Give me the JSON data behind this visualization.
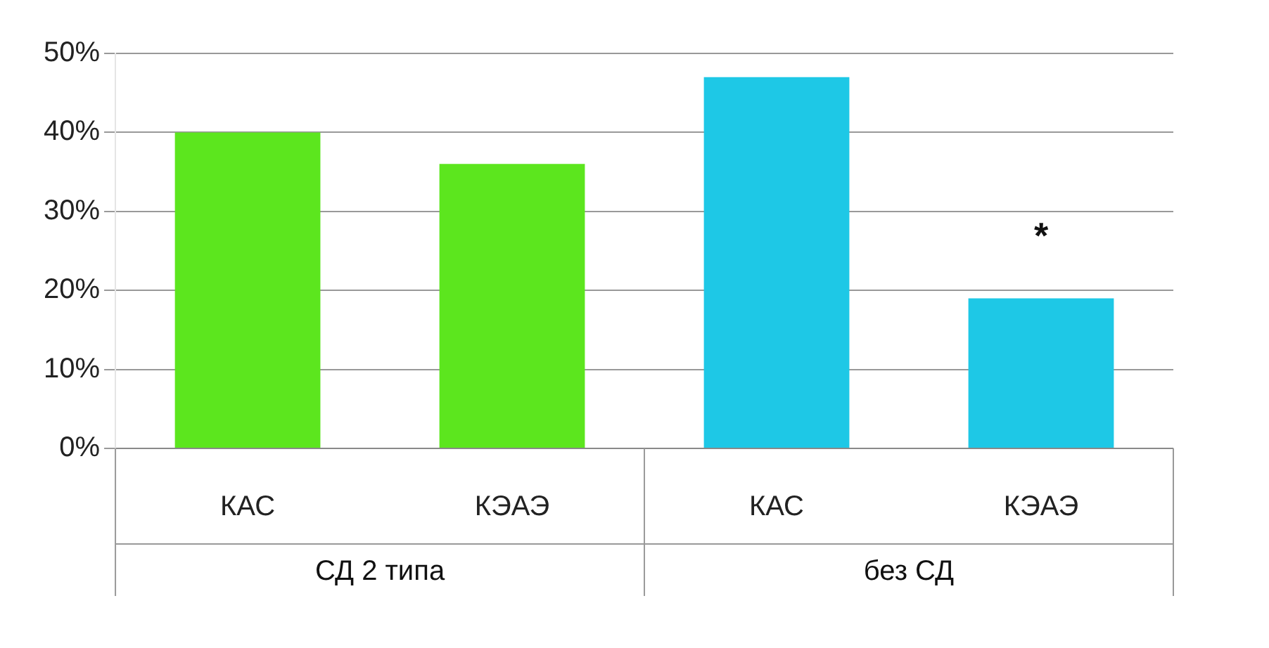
{
  "chart_data": {
    "type": "bar",
    "categories": [
      "КАС",
      "КЭАЭ",
      "КАС",
      "КЭАЭ"
    ],
    "values": [
      40,
      36,
      47,
      19
    ],
    "colors": [
      "#5ce61e",
      "#5ce61e",
      "#1ec8e6",
      "#1ec8e6"
    ],
    "ylim": [
      0,
      50
    ],
    "yticks": [
      {
        "value": 0,
        "label": "0%"
      },
      {
        "value": 10,
        "label": "10%"
      },
      {
        "value": 20,
        "label": "20%"
      },
      {
        "value": 30,
        "label": "30%"
      },
      {
        "value": 40,
        "label": "40%"
      },
      {
        "value": 50,
        "label": "50%"
      }
    ],
    "grid": "y",
    "legend": false,
    "value_labels": [
      null,
      null,
      null,
      "*"
    ],
    "annotations": [
      "СД 2 типа",
      "без СД"
    ]
  }
}
